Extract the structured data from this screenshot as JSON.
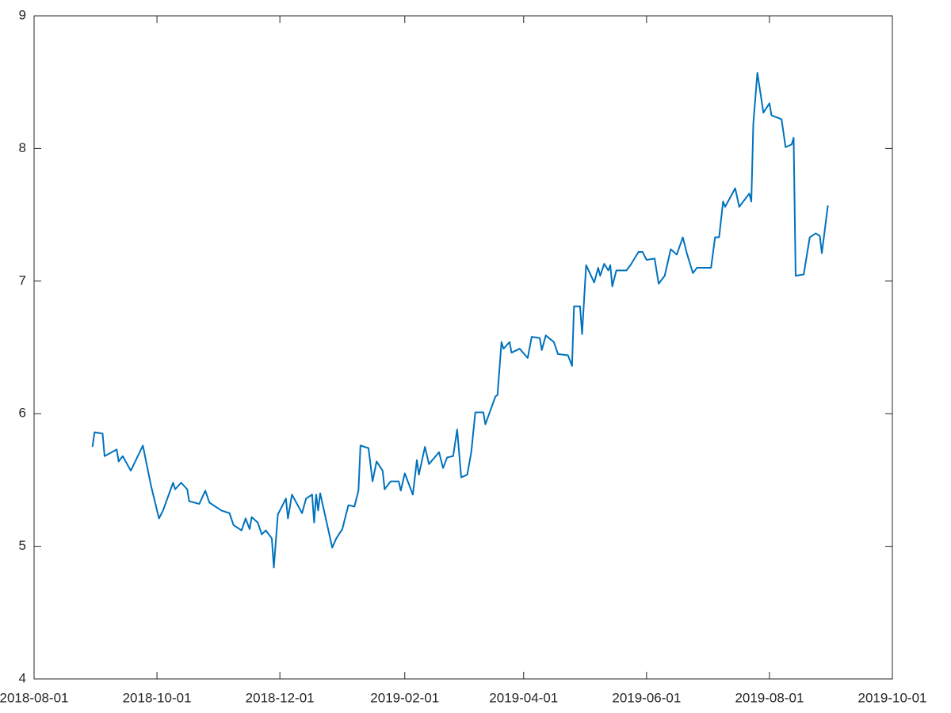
{
  "chart_data": {
    "type": "line",
    "x": [
      "2018-08-30",
      "2018-08-31",
      "2018-09-04",
      "2018-09-05",
      "2018-09-11",
      "2018-09-12",
      "2018-09-14",
      "2018-09-18",
      "2018-09-24",
      "2018-09-26",
      "2018-09-28",
      "2018-10-02",
      "2018-10-04",
      "2018-10-09",
      "2018-10-10",
      "2018-10-13",
      "2018-10-16",
      "2018-10-17",
      "2018-10-22",
      "2018-10-25",
      "2018-10-27",
      "2018-11-02",
      "2018-11-06",
      "2018-11-08",
      "2018-11-12",
      "2018-11-14",
      "2018-11-16",
      "2018-11-17",
      "2018-11-20",
      "2018-11-22",
      "2018-11-24",
      "2018-11-27",
      "2018-11-28",
      "2018-11-30",
      "2018-12-04",
      "2018-12-05",
      "2018-12-07",
      "2018-12-12",
      "2018-12-14",
      "2018-12-17",
      "2018-12-18",
      "2018-12-19",
      "2018-12-20",
      "2018-12-21",
      "2018-12-27",
      "2018-12-29",
      "2019-01-01",
      "2019-01-04",
      "2019-01-07",
      "2019-01-09",
      "2019-01-10",
      "2019-01-14",
      "2019-01-16",
      "2019-01-18",
      "2019-01-21",
      "2019-01-22",
      "2019-01-25",
      "2019-01-29",
      "2019-01-30",
      "2019-02-01",
      "2019-02-05",
      "2019-02-07",
      "2019-02-08",
      "2019-02-11",
      "2019-02-13",
      "2019-02-18",
      "2019-02-20",
      "2019-02-22",
      "2019-02-25",
      "2019-02-27",
      "2019-03-01",
      "2019-03-04",
      "2019-03-06",
      "2019-03-08",
      "2019-03-12",
      "2019-03-13",
      "2019-03-18",
      "2019-03-19",
      "2019-03-21",
      "2019-03-22",
      "2019-03-25",
      "2019-03-26",
      "2019-03-30",
      "2019-04-03",
      "2019-04-05",
      "2019-04-09",
      "2019-04-10",
      "2019-04-12",
      "2019-04-16",
      "2019-04-18",
      "2019-04-23",
      "2019-04-25",
      "2019-04-26",
      "2019-04-29",
      "2019-04-30",
      "2019-05-02",
      "2019-05-06",
      "2019-05-08",
      "2019-05-09",
      "2019-05-11",
      "2019-05-13",
      "2019-05-14",
      "2019-05-15",
      "2019-05-17",
      "2019-05-22",
      "2019-05-24",
      "2019-05-28",
      "2019-05-30",
      "2019-06-01",
      "2019-06-05",
      "2019-06-07",
      "2019-06-10",
      "2019-06-13",
      "2019-06-16",
      "2019-06-19",
      "2019-06-21",
      "2019-06-24",
      "2019-06-26",
      "2019-07-03",
      "2019-07-05",
      "2019-07-07",
      "2019-07-09",
      "2019-07-10",
      "2019-07-15",
      "2019-07-17",
      "2019-07-22",
      "2019-07-23",
      "2019-07-24",
      "2019-07-26",
      "2019-07-29",
      "2019-08-01",
      "2019-08-02",
      "2019-08-07",
      "2019-08-09",
      "2019-08-12",
      "2019-08-13",
      "2019-08-14",
      "2019-08-18",
      "2019-08-21",
      "2019-08-24",
      "2019-08-26",
      "2019-08-27",
      "2019-08-30"
    ],
    "series": [
      {
        "color": "#0072bd",
        "values": [
          5.75,
          5.86,
          5.85,
          5.68,
          5.73,
          5.64,
          5.68,
          5.57,
          5.76,
          5.61,
          5.46,
          5.21,
          5.27,
          5.48,
          5.43,
          5.48,
          5.43,
          5.34,
          5.32,
          5.42,
          5.33,
          5.27,
          5.25,
          5.16,
          5.12,
          5.21,
          5.13,
          5.22,
          5.18,
          5.09,
          5.12,
          5.06,
          4.84,
          5.24,
          5.36,
          5.21,
          5.39,
          5.25,
          5.36,
          5.39,
          5.18,
          5.39,
          5.27,
          5.4,
          4.99,
          5.06,
          5.13,
          5.31,
          5.3,
          5.42,
          5.76,
          5.74,
          5.49,
          5.64,
          5.57,
          5.43,
          5.49,
          5.49,
          5.42,
          5.55,
          5.39,
          5.65,
          5.54,
          5.75,
          5.62,
          5.71,
          5.59,
          5.67,
          5.68,
          5.88,
          5.52,
          5.54,
          5.71,
          6.01,
          6.01,
          5.92,
          6.13,
          6.14,
          6.54,
          6.49,
          6.54,
          6.46,
          6.49,
          6.42,
          6.58,
          6.57,
          6.48,
          6.59,
          6.54,
          6.45,
          6.44,
          6.36,
          6.81,
          6.81,
          6.6,
          7.12,
          6.99,
          7.1,
          7.04,
          7.13,
          7.08,
          7.12,
          6.96,
          7.08,
          7.08,
          7.12,
          7.22,
          7.22,
          7.16,
          7.17,
          6.98,
          7.04,
          7.24,
          7.2,
          7.33,
          7.21,
          7.06,
          7.1,
          7.1,
          7.33,
          7.33,
          7.6,
          7.56,
          7.7,
          7.56,
          7.66,
          7.6,
          8.19,
          8.57,
          8.27,
          8.34,
          8.25,
          8.22,
          8.01,
          8.03,
          8.08,
          7.04,
          7.05,
          7.33,
          7.36,
          7.34,
          7.21,
          7.57
        ]
      }
    ],
    "xlim": [
      "2018-08-01",
      "2019-10-01"
    ],
    "xticks": [
      "2018-08-01",
      "2018-10-01",
      "2018-12-01",
      "2019-02-01",
      "2019-04-01",
      "2019-06-01",
      "2019-08-01",
      "2019-10-01"
    ],
    "ylim": [
      4,
      9
    ],
    "yticks": [
      4,
      5,
      6,
      7,
      8,
      9
    ]
  }
}
